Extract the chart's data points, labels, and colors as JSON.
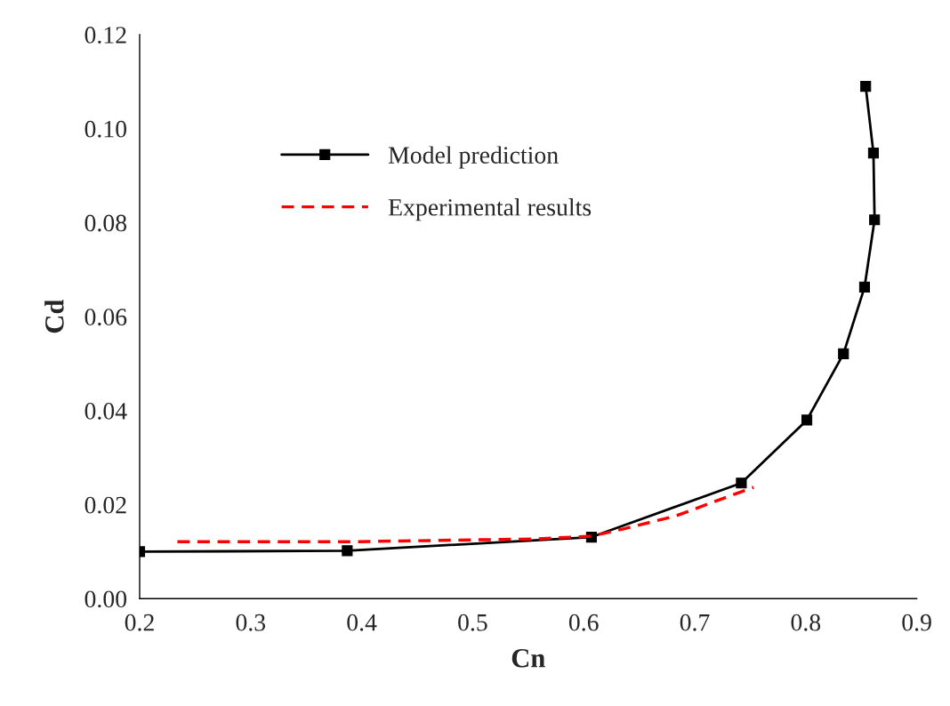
{
  "chart_data": {
    "type": "line",
    "xlabel": "Cn",
    "ylabel": "Cd",
    "xlim": [
      0.2,
      0.9
    ],
    "xticks": [
      {
        "value": 0.2,
        "label": "0.2"
      },
      {
        "value": 0.3,
        "label": "0.3"
      },
      {
        "value": 0.4,
        "label": "0.4"
      },
      {
        "value": 0.5,
        "label": "0.5"
      },
      {
        "value": 0.6,
        "label": "0.6"
      },
      {
        "value": 0.7,
        "label": "0.7"
      },
      {
        "value": 0.8,
        "label": "0.8"
      },
      {
        "value": 0.9,
        "label": "0.9"
      }
    ],
    "ylim": [
      0,
      0.12
    ],
    "yticks": [
      {
        "value": 0,
        "label": "0.00"
      },
      {
        "value": 0.02,
        "label": "0.02"
      },
      {
        "value": 0.04,
        "label": "0.04"
      },
      {
        "value": 0.06,
        "label": "0.06"
      },
      {
        "value": 0.08,
        "label": "0.08"
      },
      {
        "value": 0.1,
        "label": "0.10"
      },
      {
        "value": 0.12,
        "label": "0.12"
      }
    ],
    "grid": false,
    "legend": "top left",
    "series": [
      {
        "name": "Model prediction",
        "color": "#000000",
        "marker": "square",
        "line_style": "solid",
        "x": [
          0.2,
          0.387,
          0.607,
          0.742,
          0.801,
          0.834,
          0.853,
          0.862,
          0.861,
          0.854
        ],
        "values": [
          0.01,
          0.0102,
          0.0131,
          0.0246,
          0.038,
          0.0521,
          0.0663,
          0.0806,
          0.0948,
          0.109
        ]
      },
      {
        "name": "Experimental results",
        "color": "#ff0000",
        "marker": "none",
        "line_style": "dashed",
        "x": [
          0.234,
          0.387,
          0.555,
          0.607,
          0.635,
          0.683,
          0.715,
          0.753
        ],
        "values": [
          0.0121,
          0.0121,
          0.0127,
          0.0133,
          0.0148,
          0.0176,
          0.0204,
          0.0237
        ]
      }
    ]
  }
}
